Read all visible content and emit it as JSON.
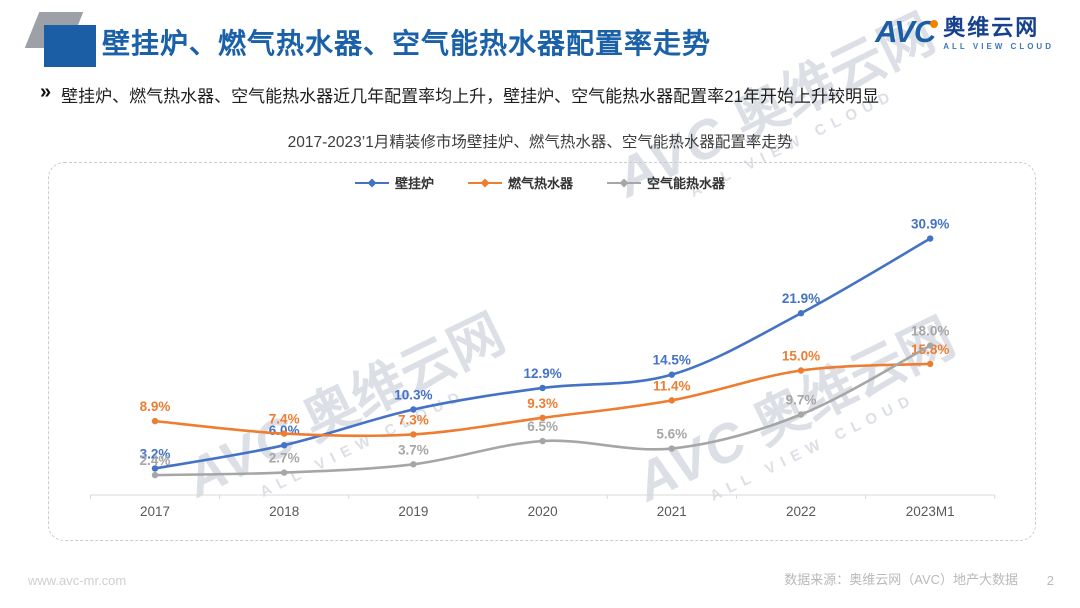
{
  "page": {
    "title": "壁挂炉、燃气热水器、空气能热水器配置率走势",
    "bullet_icon": "»",
    "subtitle": "壁挂炉、燃气热水器、空气能热水器近几年配置率均上升，壁挂炉、空气能热水器配置率21年开始上升较明显",
    "footer_left": "www.avc-mr.com",
    "footer_right": "数据来源：奥维云网（AVC）地产大数据",
    "page_number": "2"
  },
  "brand": {
    "logo_text": "AVC",
    "logo_cn": "奥维云网",
    "logo_en": "ALL VIEW CLOUD"
  },
  "watermark": {
    "logo": "AVC",
    "text_cn": "奥维云网",
    "text_en": "ALL VIEW CLOUD"
  },
  "colors": {
    "title_blue": "#1A61A9",
    "series_boiler": "#4472C4",
    "series_gas": "#ED7D31",
    "series_air": "#A6A6A6",
    "logo_blue": "#1B5EA6",
    "logo_orange": "#F08300"
  },
  "chart_data": {
    "type": "line",
    "title": "2017-2023’1月精装修市场壁挂炉、燃气热水器、空气能热水器配置率走势",
    "categories": [
      "2017",
      "2018",
      "2019",
      "2020",
      "2021",
      "2022",
      "2023M1"
    ],
    "series": [
      {
        "name": "壁挂炉",
        "color": "#4472C4",
        "values": [
          3.2,
          6.0,
          10.3,
          12.9,
          14.5,
          21.9,
          30.9
        ]
      },
      {
        "name": "燃气热水器",
        "color": "#ED7D31",
        "values": [
          8.9,
          7.4,
          7.3,
          9.3,
          11.4,
          15.0,
          15.8
        ]
      },
      {
        "name": "空气能热水器",
        "color": "#A6A6A6",
        "values": [
          2.4,
          2.7,
          3.7,
          6.5,
          5.6,
          9.7,
          18.0
        ]
      }
    ],
    "unit": "%",
    "ylim": [
      0,
      39
    ],
    "grid": false,
    "legend_position": "top",
    "data_labels": true
  }
}
